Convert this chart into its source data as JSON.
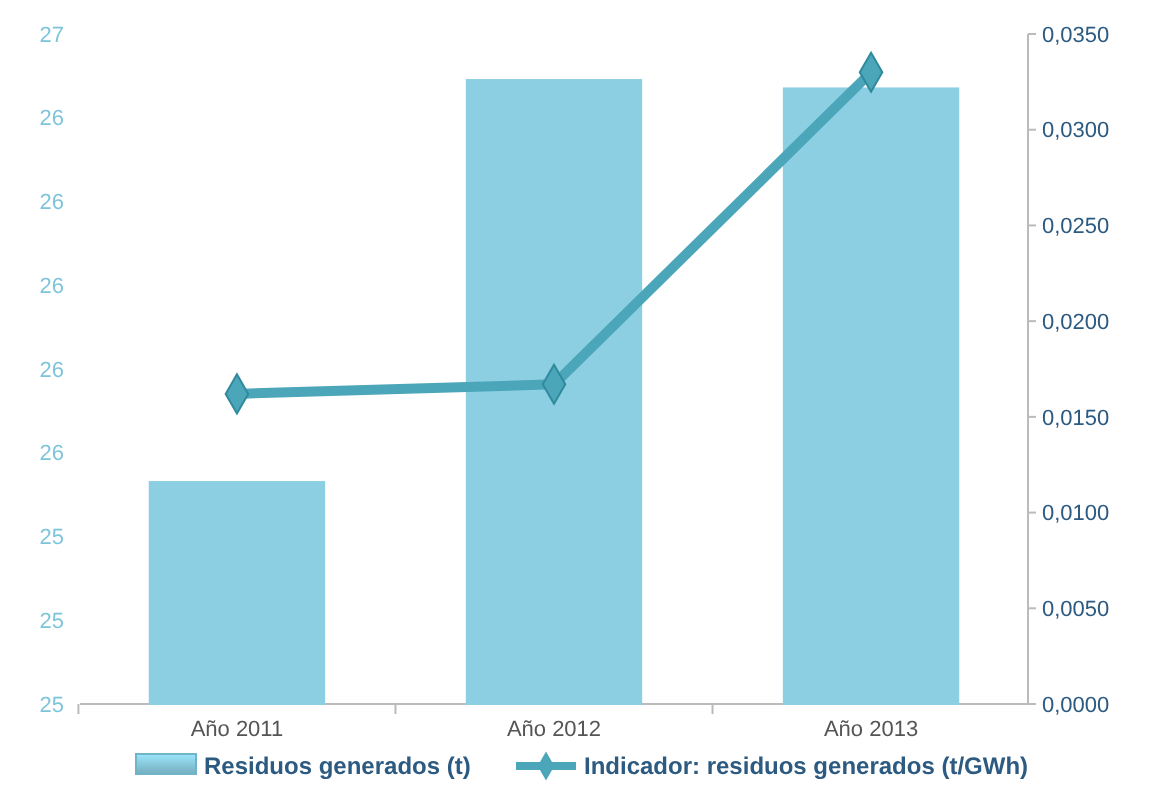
{
  "chart_data": {
    "type": "bar",
    "categories": [
      "Año 2011",
      "Año 2012",
      "Año 2013"
    ],
    "series": [
      {
        "name": "Residuos generados (t)",
        "color": "#8ccfe2",
        "values": [
          25.53,
          26.49,
          26.47
        ]
      },
      {
        "name": "Indicador: residuos generados (t/GWh)",
        "type": "line",
        "axis": "y2",
        "color": "#4ba6b9",
        "values": [
          0.0162,
          0.0167,
          0.033
        ]
      }
    ],
    "ylim": [
      25,
      26.6
    ],
    "yticks": [
      25,
      {
        "value": 25.2,
        "label": "25"
      },
      {
        "value": 25.4,
        "label": "25"
      },
      {
        "value": 25.6,
        "label": "26"
      },
      {
        "value": 25.8,
        "label": "26"
      },
      26,
      {
        "value": 26.2,
        "label": "26"
      },
      {
        "value": 26.4,
        "label": "26"
      },
      {
        "value": 26.6,
        "label": "27"
      }
    ],
    "y2lim": [
      0,
      0.035
    ],
    "y2ticks": [
      {
        "value": 0,
        "label": "0,0000"
      },
      {
        "value": 0.005,
        "label": "0,0050"
      },
      {
        "value": 0.01,
        "label": "0,0100"
      },
      {
        "value": 0.015,
        "label": "0,0150"
      },
      {
        "value": 0.02,
        "label": "0,0200"
      },
      {
        "value": 0.025,
        "label": "0,0250"
      },
      {
        "value": 0.03,
        "label": "0,0300"
      },
      {
        "value": 0.035,
        "label": "0,0350"
      }
    ],
    "legend": "bottom",
    "marker": "diamond",
    "line_style": "solid"
  }
}
